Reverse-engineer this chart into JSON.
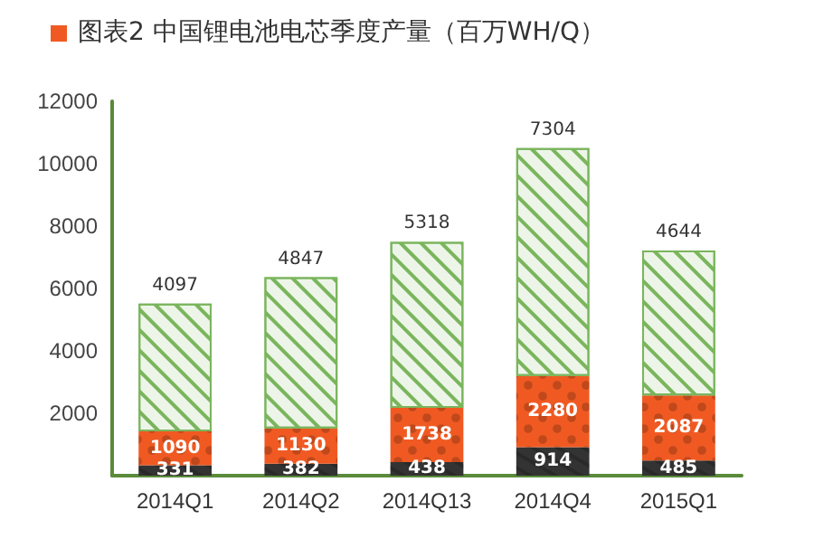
{
  "chart_data": {
    "type": "bar",
    "title": "图表2 中国锂电池电芯季度产量（百万WH/Q）",
    "categories": [
      "2014Q1",
      "2014Q2",
      "2014Q13",
      "2014Q4",
      "2015Q1"
    ],
    "stacked": true,
    "data_labels": true,
    "grid": false,
    "ylim": [
      0,
      12000
    ],
    "yticks": [
      2000,
      4000,
      6000,
      8000,
      10000,
      12000
    ],
    "series": [
      {
        "color": "#333333",
        "values": [
          331,
          382,
          438,
          914,
          485
        ]
      },
      {
        "color": "#f05a22",
        "values": [
          1090,
          1130,
          1738,
          2280,
          2087
        ]
      },
      {
        "color": "#7ab55c",
        "values": [
          4097,
          4847,
          5318,
          7304,
          4644
        ]
      }
    ]
  }
}
